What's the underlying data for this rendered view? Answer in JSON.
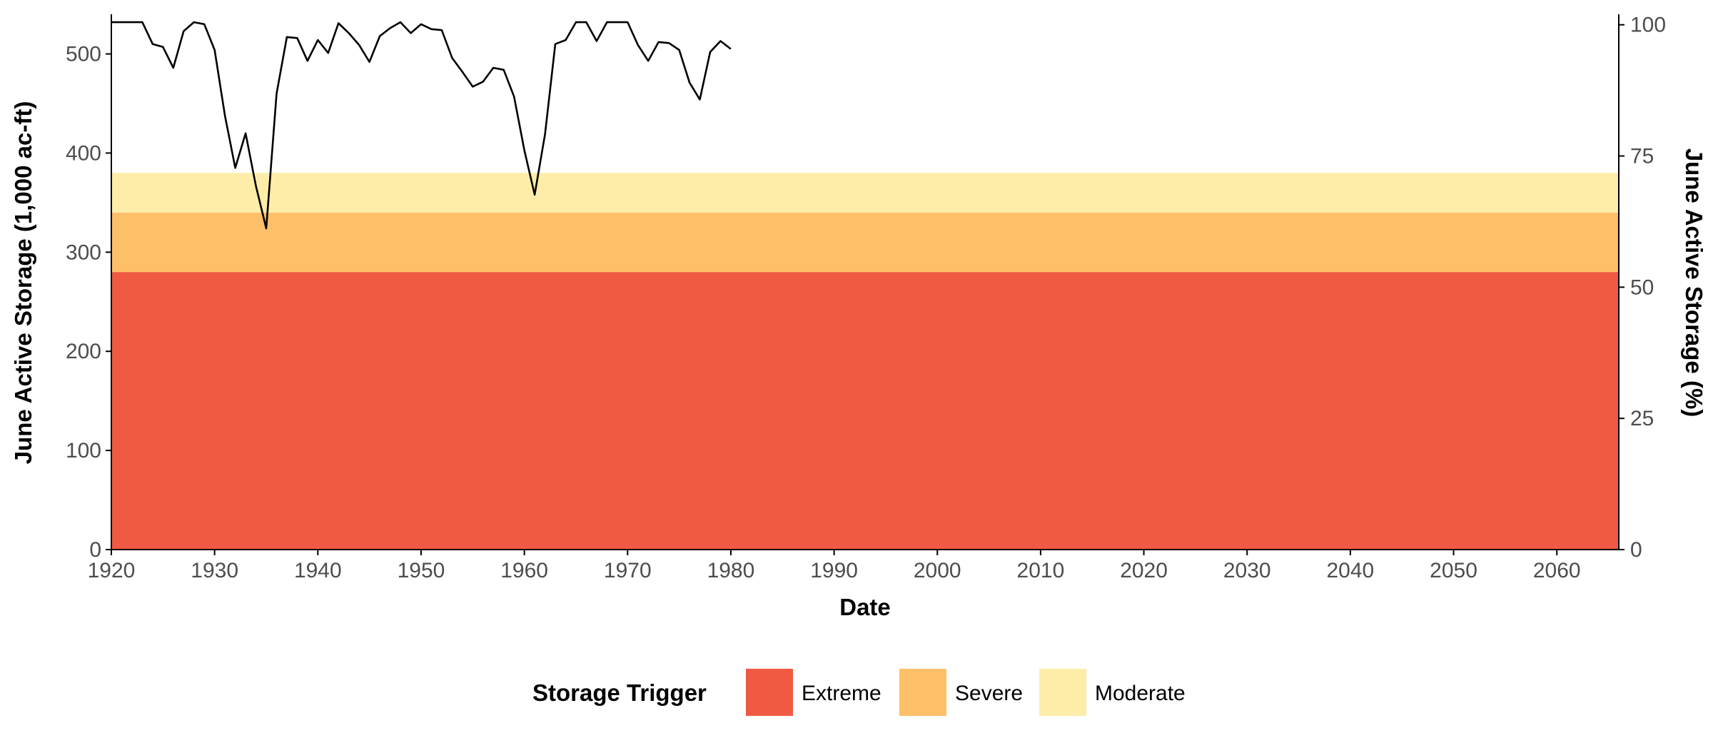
{
  "chart_data": {
    "type": "line",
    "title": "",
    "xlabel": "Date",
    "ylabel": "June Active Storage (1,000 ac-ft)",
    "y2label": "June Active Storage (%)",
    "xlim": [
      1920,
      2066
    ],
    "ylim": [
      0,
      540
    ],
    "y2lim": [
      0,
      102
    ],
    "x_ticks": [
      1920,
      1930,
      1940,
      1950,
      1960,
      1970,
      1980,
      1990,
      2000,
      2010,
      2020,
      2030,
      2040,
      2050,
      2060
    ],
    "y_ticks": [
      0,
      100,
      200,
      300,
      400,
      500
    ],
    "y2_ticks": [
      0,
      25,
      50,
      75,
      100
    ],
    "grid": false,
    "legend_position": "bottom",
    "legend_title": "Storage Trigger",
    "bands": [
      {
        "name": "Extreme",
        "from": 0,
        "to": 280,
        "color": "#f05a42"
      },
      {
        "name": "Severe",
        "from": 280,
        "to": 340,
        "color": "#febf69"
      },
      {
        "name": "Moderate",
        "from": 340,
        "to": 380,
        "color": "#feeda8"
      }
    ],
    "series": [
      {
        "color": "#000000",
        "x": [
          1920,
          1921,
          1922,
          1923,
          1924,
          1925,
          1926,
          1927,
          1928,
          1929,
          1930,
          1931,
          1932,
          1933,
          1934,
          1935,
          1936,
          1937,
          1938,
          1939,
          1940,
          1941,
          1942,
          1943,
          1944,
          1945,
          1946,
          1947,
          1948,
          1949,
          1950,
          1951,
          1952,
          1953,
          1954,
          1955,
          1956,
          1957,
          1958,
          1959,
          1960,
          1961,
          1962,
          1963,
          1964,
          1965,
          1966,
          1967,
          1968,
          1969,
          1970,
          1971,
          1972,
          1973,
          1974,
          1975,
          1976,
          1977,
          1978,
          1979,
          1980
        ],
        "values": [
          532,
          532,
          532,
          532,
          510,
          507,
          486,
          523,
          532,
          530,
          504,
          438,
          385,
          420,
          367,
          324,
          460,
          517,
          516,
          493,
          514,
          501,
          531,
          521,
          509,
          492,
          518,
          526,
          532,
          521,
          530,
          525,
          524,
          496,
          482,
          467,
          472,
          486,
          484,
          457,
          403,
          358,
          419,
          510,
          514,
          532,
          532,
          513,
          532,
          532,
          532,
          509,
          493,
          512,
          511,
          504,
          471,
          454,
          502,
          513,
          505
        ]
      }
    ]
  }
}
